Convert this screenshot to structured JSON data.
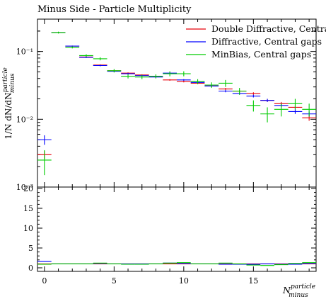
{
  "chart_data": {
    "type": "scatter",
    "title": "Minus Side - Particle Multiplicity",
    "ylabel": "1/N dN/dN",
    "ylabel_sup": "particle",
    "ylabel_sub": "minus",
    "xlabel": "N",
    "xlabel_sup": "particle",
    "xlabel_sub": "minus",
    "xlim": [
      -0.5,
      19.5
    ],
    "ylim": [
      0.001,
      0.3
    ],
    "yscale": "log",
    "ytick_labels": [
      "10⁻³",
      "10⁻²",
      "10⁻¹"
    ],
    "ratio_ylim": [
      0,
      20
    ],
    "ratio_yticks": [
      "0",
      "5",
      "10",
      "15",
      "20"
    ],
    "xticks": [
      "0",
      "5",
      "10",
      "15"
    ],
    "legend_position": "top-right",
    "x": [
      0,
      1,
      2,
      3,
      4,
      5,
      6,
      7,
      8,
      9,
      10,
      11,
      12,
      13,
      14,
      15,
      16,
      17,
      18,
      19
    ],
    "series": [
      {
        "name": "Double Diffractive, Central gaps",
        "color": "#e8000b",
        "values": [
          0.003,
          0.19,
          0.12,
          0.083,
          0.063,
          0.052,
          0.048,
          0.045,
          0.043,
          0.038,
          0.036,
          0.034,
          0.031,
          0.028,
          0.026,
          0.024,
          0.019,
          0.017,
          0.015,
          0.0105
        ],
        "errors": [
          0.0004,
          0.004,
          0.002,
          0.002,
          0.0015,
          0.0012,
          0.0011,
          0.001,
          0.001,
          0.001,
          0.001,
          0.001,
          0.001,
          0.001,
          0.001,
          0.001,
          0.001,
          0.001,
          0.001,
          0.001
        ],
        "ratio": [
          1.0,
          1.0,
          1.0,
          1.0,
          1.0,
          1.0,
          1.0,
          1.0,
          1.0,
          1.0,
          1.0,
          1.0,
          1.0,
          1.0,
          1.0,
          1.0,
          1.0,
          1.0,
          1.0,
          1.0
        ]
      },
      {
        "name": "Diffractive, Central gaps",
        "color": "#0000ff",
        "values": [
          0.005,
          0.19,
          0.12,
          0.082,
          0.062,
          0.051,
          0.047,
          0.044,
          0.042,
          0.048,
          0.038,
          0.035,
          0.031,
          0.026,
          0.024,
          0.022,
          0.019,
          0.016,
          0.013,
          0.012
        ],
        "errors": [
          0.0008,
          0.004,
          0.002,
          0.002,
          0.0015,
          0.0012,
          0.0011,
          0.001,
          0.001,
          0.0015,
          0.001,
          0.001,
          0.001,
          0.001,
          0.001,
          0.001,
          0.001,
          0.001,
          0.001,
          0.001
        ],
        "ratio": [
          1.6,
          1.0,
          1.0,
          1.0,
          1.1,
          1.0,
          1.0,
          1.0,
          1.0,
          1.2,
          1.1,
          1.0,
          1.0,
          0.9,
          0.9,
          0.9,
          1.0,
          0.9,
          0.9,
          1.1
        ]
      },
      {
        "name": "MinBias, Central gaps",
        "color": "#00cc00",
        "values": [
          0.0025,
          0.19,
          0.115,
          0.087,
          0.078,
          0.052,
          0.043,
          0.042,
          0.043,
          0.047,
          0.047,
          0.036,
          0.032,
          0.034,
          0.026,
          0.016,
          0.012,
          0.014,
          0.017,
          0.014
        ],
        "errors": [
          0.001,
          0.006,
          0.004,
          0.004,
          0.004,
          0.003,
          0.003,
          0.003,
          0.003,
          0.004,
          0.004,
          0.003,
          0.003,
          0.004,
          0.003,
          0.003,
          0.003,
          0.003,
          0.003,
          0.003
        ],
        "ratio": [
          0.9,
          1.0,
          1.0,
          1.0,
          1.2,
          1.0,
          0.9,
          0.9,
          1.0,
          1.2,
          1.3,
          1.0,
          1.0,
          1.2,
          1.0,
          0.7,
          0.6,
          0.8,
          1.1,
          1.3
        ]
      }
    ]
  }
}
